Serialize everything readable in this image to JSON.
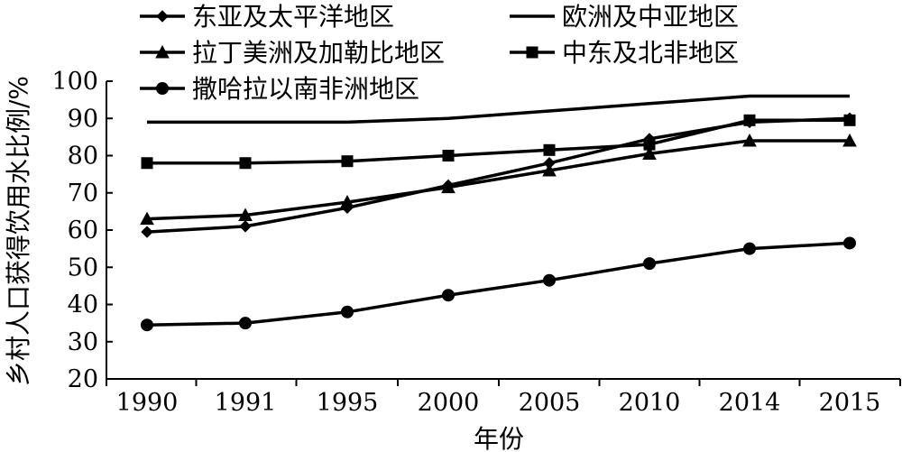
{
  "chart_data": {
    "type": "line",
    "xlabel": "年份",
    "ylabel": "乡村人口获得饮用水比例/%",
    "ylim": [
      20,
      100
    ],
    "yticks": [
      20,
      30,
      40,
      50,
      60,
      70,
      80,
      90,
      100
    ],
    "categories": [
      "1990",
      "1991",
      "1995",
      "2000",
      "2005",
      "2010",
      "2014",
      "2015"
    ],
    "grid": false,
    "legend_position": "top",
    "series": [
      {
        "name": "东亚及太平洋地区",
        "marker": "diamond",
        "values": [
          59.5,
          61,
          66,
          72,
          78,
          84.5,
          89,
          90
        ]
      },
      {
        "name": "欧洲及中亚地区",
        "marker": "none",
        "values": [
          89,
          89,
          89,
          90,
          92,
          94,
          96,
          96
        ]
      },
      {
        "name": "拉丁美洲及加勒比地区",
        "marker": "triangle",
        "values": [
          63,
          64,
          67.5,
          71.5,
          76,
          80.5,
          84,
          84
        ]
      },
      {
        "name": "中东及北非地区",
        "marker": "square",
        "values": [
          78,
          78,
          78.5,
          80,
          81.5,
          83,
          89.5,
          89.5
        ]
      },
      {
        "name": "撒哈拉以南非洲地区",
        "marker": "circle",
        "values": [
          34.5,
          35,
          38,
          42.5,
          46.5,
          51,
          55,
          56.5
        ]
      }
    ]
  }
}
